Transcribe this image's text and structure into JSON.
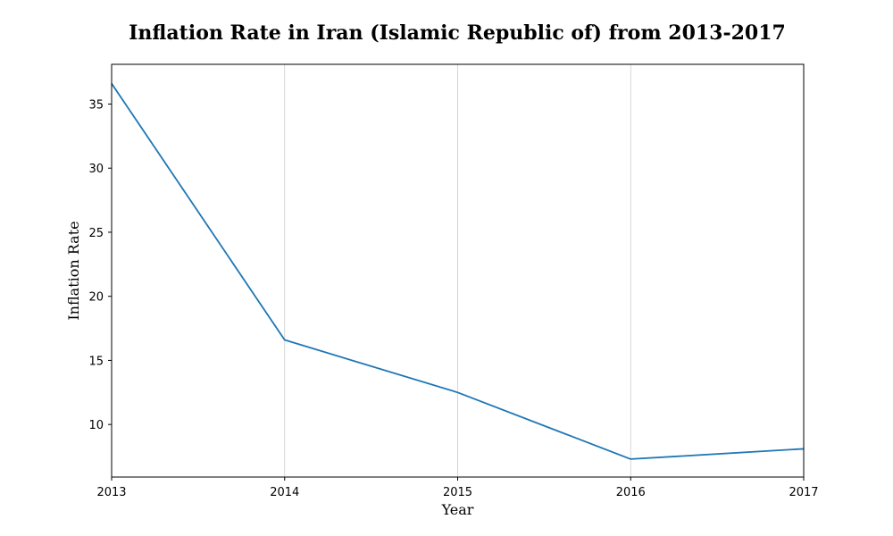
{
  "chart_data": {
    "type": "line",
    "title": "Inflation Rate in Iran (Islamic Republic of) from 2013-2017",
    "xlabel": "Year",
    "ylabel": "Inflation Rate",
    "x": [
      2013,
      2014,
      2015,
      2016,
      2017
    ],
    "series": [
      {
        "values": [
          36.6,
          16.6,
          12.5,
          7.3,
          8.1
        ],
        "color": "#1f77b4"
      }
    ],
    "xlim": [
      2013,
      2017
    ],
    "ylim": [
      5.9,
      38.1
    ],
    "yticks": [
      10,
      15,
      20,
      25,
      30,
      35
    ],
    "xticks": [
      2013,
      2014,
      2015,
      2016,
      2017
    ],
    "grid": {
      "x": true,
      "y": false,
      "color": "#cccccc"
    },
    "legend": "none"
  }
}
